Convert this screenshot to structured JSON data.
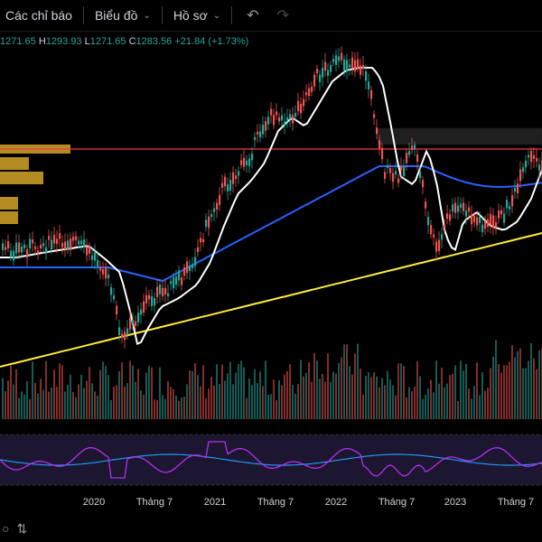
{
  "toolbar": {
    "indicators_label": "Các chỉ báo",
    "chart_label": "Biểu đồ",
    "profile_label": "Hồ sơ",
    "undo_icon": "undo-icon",
    "redo_icon": "redo-icon"
  },
  "ohlc": {
    "open": "1271.65",
    "high_label": "H",
    "high": "1293.93",
    "low_label": "L",
    "low": "1271.65",
    "close_label": "C",
    "close": "1283.56",
    "change": "+21.84 (+1.73%)"
  },
  "time_axis": {
    "labels": [
      "2020",
      "Tháng 7",
      "2021",
      "Tháng 7",
      "2022",
      "Tháng 7",
      "2023",
      "Tháng 7"
    ]
  },
  "bottom_bar": {
    "icons": [
      "stop-icon",
      "replay-icon"
    ]
  },
  "colors": {
    "background": "#000000",
    "up": "#26a69a",
    "down": "#ef5350",
    "ma_fast": "#ffffff",
    "ma_mid": "#2962ff",
    "ma_slow": "#ffeb3b",
    "resistance_line": "#f23645",
    "rsi": "#b42ff0",
    "rsi_ma": "#2196f3",
    "volume_profile": "#d4a428"
  },
  "chart_data": {
    "type": "candlestick",
    "time_labels": [
      "2020",
      "Tháng 7",
      "2021",
      "Tháng 7",
      "2022",
      "Tháng 7",
      "2023",
      "Tháng 7"
    ],
    "indicators": [
      "moving average (white)",
      "moving average (blue)",
      "moving average (yellow)",
      "volume",
      "RSI with moving average"
    ],
    "grid": false
  }
}
